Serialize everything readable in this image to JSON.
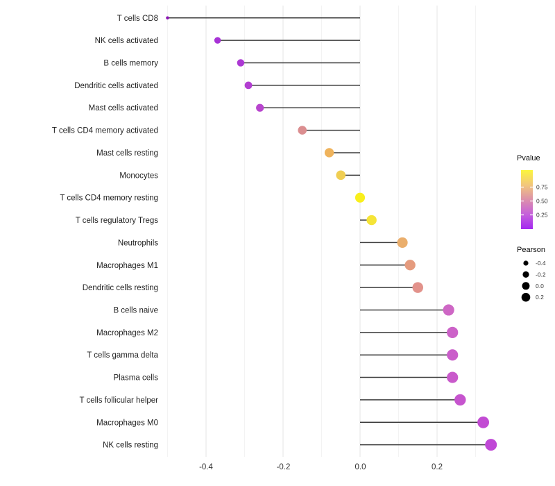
{
  "chart_data": {
    "type": "scatter",
    "variant": "horizontal-lollipop",
    "title": "",
    "xlabel": "",
    "ylabel": "",
    "grid": "on",
    "baseline": 0,
    "xlim": [
      -0.512,
      0.398
    ],
    "x_ticks": [
      "-0.4",
      "-0.2",
      "0.0",
      "0.2"
    ],
    "x_tick_values": [
      -0.4,
      -0.2,
      0.0,
      0.2
    ],
    "x_minor_tick_values": [
      -0.5,
      -0.3,
      -0.1,
      0.1,
      0.3
    ],
    "points": [
      {
        "label": "T cells CD8",
        "pearson": -0.5,
        "color": "#8B14B4"
      },
      {
        "label": "NK cells activated",
        "pearson": -0.37,
        "color": "#A733D6"
      },
      {
        "label": "B cells memory",
        "pearson": -0.31,
        "color": "#AC38D3"
      },
      {
        "label": "Dendritic cells activated",
        "pearson": -0.29,
        "color": "#B23ED1"
      },
      {
        "label": "Mast cells activated",
        "pearson": -0.26,
        "color": "#B845CE"
      },
      {
        "label": "T cells CD4 memory activated",
        "pearson": -0.15,
        "color": "#DB8E90"
      },
      {
        "label": "Mast cells resting",
        "pearson": -0.08,
        "color": "#EFB35C"
      },
      {
        "label": "Monocytes",
        "pearson": -0.05,
        "color": "#F0CE52"
      },
      {
        "label": "T cells CD4 memory resting",
        "pearson": 0.0,
        "color": "#F9EF1C"
      },
      {
        "label": "T cells regulatory  Tregs",
        "pearson": 0.03,
        "color": "#F5E437"
      },
      {
        "label": "Neutrophils",
        "pearson": 0.11,
        "color": "#EAAE6C"
      },
      {
        "label": "Macrophages M1",
        "pearson": 0.13,
        "color": "#E59B7E"
      },
      {
        "label": "Dendritic cells resting",
        "pearson": 0.15,
        "color": "#E2928B"
      },
      {
        "label": "B cells naive",
        "pearson": 0.23,
        "color": "#CE67C5"
      },
      {
        "label": "Macrophages M2",
        "pearson": 0.24,
        "color": "#CC62C8"
      },
      {
        "label": "T cells gamma delta",
        "pearson": 0.24,
        "color": "#CA5DCA"
      },
      {
        "label": "Plasma cells",
        "pearson": 0.24,
        "color": "#C95ACB"
      },
      {
        "label": "T cells follicular helper",
        "pearson": 0.26,
        "color": "#C654CE"
      },
      {
        "label": "Macrophages M0",
        "pearson": 0.32,
        "color": "#C24BD3"
      },
      {
        "label": "NK cells resting",
        "pearson": 0.34,
        "color": "#C048D6"
      }
    ],
    "legend_pvalue": {
      "title": "Pvalue",
      "ticks": [
        "0.75",
        "0.50",
        "0.25"
      ],
      "gradient_top_to_bottom": [
        "#FBF53D",
        "#F2C77C",
        "#DC90AB",
        "#C560DB",
        "#A428F0"
      ]
    },
    "legend_pearson": {
      "title": "Pearson",
      "entries": [
        {
          "label": "-0.4",
          "r": 3.6
        },
        {
          "label": "-0.2",
          "r": 4.6
        },
        {
          "label": "0.0",
          "r": 5.5
        },
        {
          "label": "0.2",
          "r": 6.3
        }
      ]
    }
  }
}
